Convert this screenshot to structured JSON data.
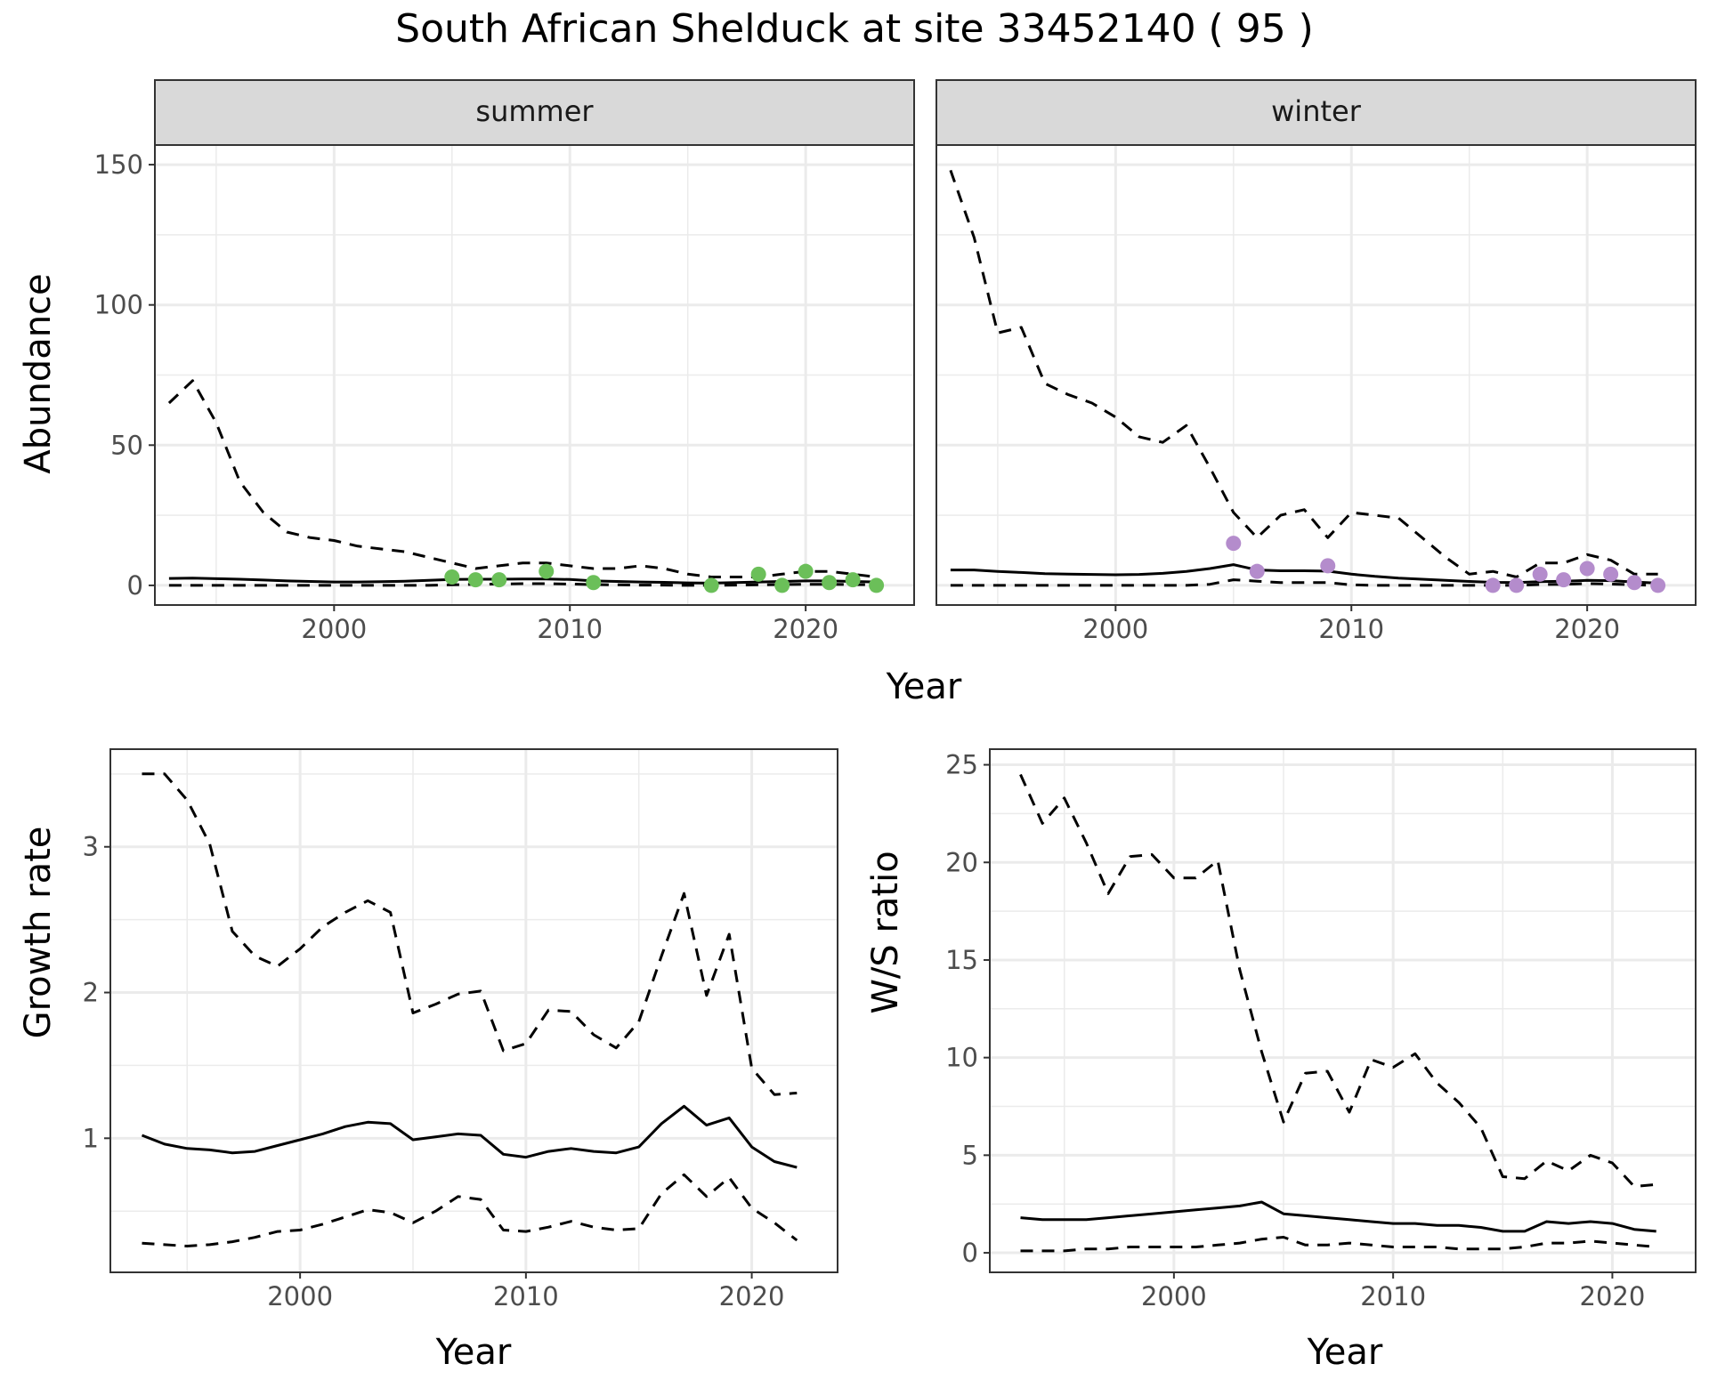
{
  "title": "South African Shelduck at site 33452140 ( 95 )",
  "colors": {
    "summer_points": "#6bbf59",
    "winter_points": "#b48ccc",
    "lines": "#000000",
    "grid": "#ebebeb",
    "strip_fill": "#d9d9d9"
  },
  "chart_data": [
    {
      "type": "line",
      "facets": [
        "summer",
        "winter"
      ],
      "xlabel": "Year",
      "ylabel": "Abundance",
      "xlim": [
        1992.4,
        2024.6
      ],
      "ylim": [
        -7,
        157
      ],
      "x_ticks": [
        2000,
        2010,
        2020
      ],
      "y_ticks": [
        0,
        50,
        100,
        150
      ],
      "grid": true,
      "panels": [
        {
          "facet": "summer",
          "x": [
            1993,
            1994,
            1995,
            1996,
            1997,
            1998,
            1999,
            2000,
            2001,
            2002,
            2003,
            2004,
            2005,
            2006,
            2007,
            2008,
            2009,
            2010,
            2011,
            2012,
            2013,
            2014,
            2015,
            2016,
            2017,
            2018,
            2019,
            2020,
            2021,
            2022,
            2023
          ],
          "series": [
            {
              "role": "estimate",
              "style": "solid",
              "values": [
                2.5,
                2.6,
                2.4,
                2.2,
                1.9,
                1.6,
                1.4,
                1.2,
                1.2,
                1.3,
                1.5,
                1.8,
                2.1,
                2.2,
                2.2,
                2.3,
                2.3,
                2.1,
                1.6,
                1.4,
                1.2,
                1.1,
                0.9,
                0.8,
                1.0,
                1.2,
                1.4,
                1.6,
                1.6,
                1.4,
                1.2
              ]
            },
            {
              "role": "upper",
              "style": "dashed",
              "values": [
                65,
                73,
                58,
                37,
                26,
                19,
                17,
                16,
                14,
                13,
                12,
                10,
                8,
                6,
                7,
                8,
                8,
                7,
                6,
                6,
                7,
                6,
                4,
                3,
                3,
                3,
                4,
                5,
                5,
                4,
                3
              ]
            },
            {
              "role": "lower",
              "style": "dashed",
              "values": [
                0,
                0,
                0,
                0,
                0,
                0,
                0,
                0,
                0,
                0,
                0,
                0,
                0.2,
                0.4,
                0.5,
                0.6,
                0.6,
                0.5,
                0.3,
                0.2,
                0.1,
                0.1,
                0,
                0,
                0.1,
                0.2,
                0.3,
                0.4,
                0.4,
                0.3,
                0.2
              ]
            }
          ],
          "points": {
            "x": [
              2005,
              2006,
              2007,
              2009,
              2011,
              2016,
              2018,
              2019,
              2020,
              2021,
              2022,
              2023
            ],
            "y": [
              3,
              2,
              2,
              5,
              1,
              0,
              4,
              0,
              5,
              1,
              2,
              0
            ]
          }
        },
        {
          "facet": "winter",
          "x": [
            1993,
            1994,
            1995,
            1996,
            1997,
            1998,
            1999,
            2000,
            2001,
            2002,
            2003,
            2004,
            2005,
            2006,
            2007,
            2008,
            2009,
            2010,
            2011,
            2012,
            2013,
            2014,
            2015,
            2016,
            2017,
            2018,
            2019,
            2020,
            2021,
            2022,
            2023
          ],
          "series": [
            {
              "role": "estimate",
              "style": "solid",
              "values": [
                5.5,
                5.5,
                5.0,
                4.6,
                4.2,
                4.0,
                3.9,
                3.8,
                3.9,
                4.3,
                5.0,
                6.0,
                7.4,
                5.5,
                5.2,
                5.2,
                5.1,
                4.0,
                3.2,
                2.6,
                2.2,
                1.8,
                1.4,
                1.1,
                1.0,
                1.3,
                1.5,
                1.8,
                1.7,
                1.2,
                0.8
              ]
            },
            {
              "role": "upper",
              "style": "dashed",
              "values": [
                148,
                124,
                90,
                92,
                72,
                68,
                65,
                60,
                53,
                51,
                57,
                42,
                26,
                17,
                25,
                27,
                17,
                26,
                25,
                24,
                17,
                10,
                4,
                5,
                3,
                8,
                8,
                11,
                9,
                4,
                4
              ]
            },
            {
              "role": "lower",
              "style": "dashed",
              "values": [
                0,
                0,
                0,
                0,
                0,
                0,
                0,
                0,
                0,
                0,
                0,
                0.4,
                2,
                1.5,
                1,
                1,
                1,
                0.2,
                0,
                0,
                0,
                0,
                0,
                0,
                0,
                0.3,
                0.4,
                0.6,
                0.5,
                0.2,
                0
              ]
            }
          ],
          "points": {
            "x": [
              2005,
              2006,
              2009,
              2016,
              2017,
              2018,
              2019,
              2020,
              2021,
              2022,
              2023
            ],
            "y": [
              15,
              5,
              7,
              0,
              0,
              4,
              2,
              6,
              4,
              1,
              0
            ]
          }
        }
      ]
    },
    {
      "type": "line",
      "xlabel": "Year",
      "ylabel": "Growth rate",
      "xlim": [
        1991.6,
        2023.8
      ],
      "ylim": [
        0.08,
        3.67
      ],
      "x_ticks": [
        2000,
        2010,
        2020
      ],
      "y_ticks": [
        1,
        2,
        3
      ],
      "grid": true,
      "x": [
        1993,
        1994,
        1995,
        1996,
        1997,
        1998,
        1999,
        2000,
        2001,
        2002,
        2003,
        2004,
        2005,
        2006,
        2007,
        2008,
        2009,
        2010,
        2011,
        2012,
        2013,
        2014,
        2015,
        2016,
        2017,
        2018,
        2019,
        2020,
        2021,
        2022
      ],
      "series": [
        {
          "role": "estimate",
          "style": "solid",
          "values": [
            1.02,
            0.96,
            0.93,
            0.92,
            0.9,
            0.91,
            0.95,
            0.99,
            1.03,
            1.08,
            1.11,
            1.1,
            0.99,
            1.01,
            1.03,
            1.02,
            0.89,
            0.87,
            0.91,
            0.93,
            0.91,
            0.9,
            0.94,
            1.1,
            1.22,
            1.09,
            1.14,
            0.94,
            0.84,
            0.8
          ]
        },
        {
          "role": "upper",
          "style": "dashed",
          "values": [
            3.5,
            3.5,
            3.32,
            3.02,
            2.42,
            2.25,
            2.18,
            2.3,
            2.45,
            2.55,
            2.63,
            2.55,
            1.86,
            1.92,
            1.99,
            2.01,
            1.6,
            1.65,
            1.88,
            1.87,
            1.71,
            1.62,
            1.8,
            2.25,
            2.68,
            1.98,
            2.4,
            1.48,
            1.3,
            1.31
          ]
        },
        {
          "role": "lower",
          "style": "dashed",
          "values": [
            0.28,
            0.27,
            0.26,
            0.27,
            0.29,
            0.32,
            0.36,
            0.37,
            0.41,
            0.46,
            0.51,
            0.49,
            0.42,
            0.5,
            0.6,
            0.58,
            0.37,
            0.36,
            0.39,
            0.43,
            0.39,
            0.37,
            0.38,
            0.62,
            0.75,
            0.6,
            0.73,
            0.52,
            0.42,
            0.3
          ]
        }
      ]
    },
    {
      "type": "line",
      "xlabel": "Year",
      "ylabel": "W/S ratio",
      "xlim": [
        1991.6,
        2023.8
      ],
      "ylim": [
        -1.0,
        25.8
      ],
      "x_ticks": [
        2000,
        2010,
        2020
      ],
      "y_ticks": [
        0,
        5,
        10,
        15,
        20,
        25
      ],
      "grid": true,
      "x": [
        1993,
        1994,
        1995,
        1996,
        1997,
        1998,
        1999,
        2000,
        2001,
        2002,
        2003,
        2004,
        2005,
        2006,
        2007,
        2008,
        2009,
        2010,
        2011,
        2012,
        2013,
        2014,
        2015,
        2016,
        2017,
        2018,
        2019,
        2020,
        2021,
        2022
      ],
      "series": [
        {
          "role": "estimate",
          "style": "solid",
          "values": [
            1.8,
            1.7,
            1.7,
            1.7,
            1.8,
            1.9,
            2.0,
            2.1,
            2.2,
            2.3,
            2.4,
            2.6,
            2.0,
            1.9,
            1.8,
            1.7,
            1.6,
            1.5,
            1.5,
            1.4,
            1.4,
            1.3,
            1.1,
            1.1,
            1.6,
            1.5,
            1.6,
            1.5,
            1.2,
            1.1
          ]
        },
        {
          "role": "upper",
          "style": "dashed",
          "values": [
            24.5,
            22.0,
            23.3,
            21.0,
            18.4,
            20.3,
            20.4,
            19.2,
            19.2,
            20.1,
            14.5,
            10.3,
            6.7,
            9.2,
            9.3,
            7.2,
            9.9,
            9.5,
            10.2,
            8.7,
            7.7,
            6.4,
            3.9,
            3.8,
            4.7,
            4.2,
            5.0,
            4.6,
            3.4,
            3.5
          ]
        },
        {
          "role": "lower",
          "style": "dashed",
          "values": [
            0.1,
            0.1,
            0.1,
            0.2,
            0.2,
            0.3,
            0.3,
            0.3,
            0.3,
            0.4,
            0.5,
            0.7,
            0.8,
            0.4,
            0.4,
            0.5,
            0.4,
            0.3,
            0.3,
            0.3,
            0.2,
            0.2,
            0.2,
            0.3,
            0.5,
            0.5,
            0.6,
            0.5,
            0.4,
            0.3
          ]
        }
      ]
    }
  ]
}
